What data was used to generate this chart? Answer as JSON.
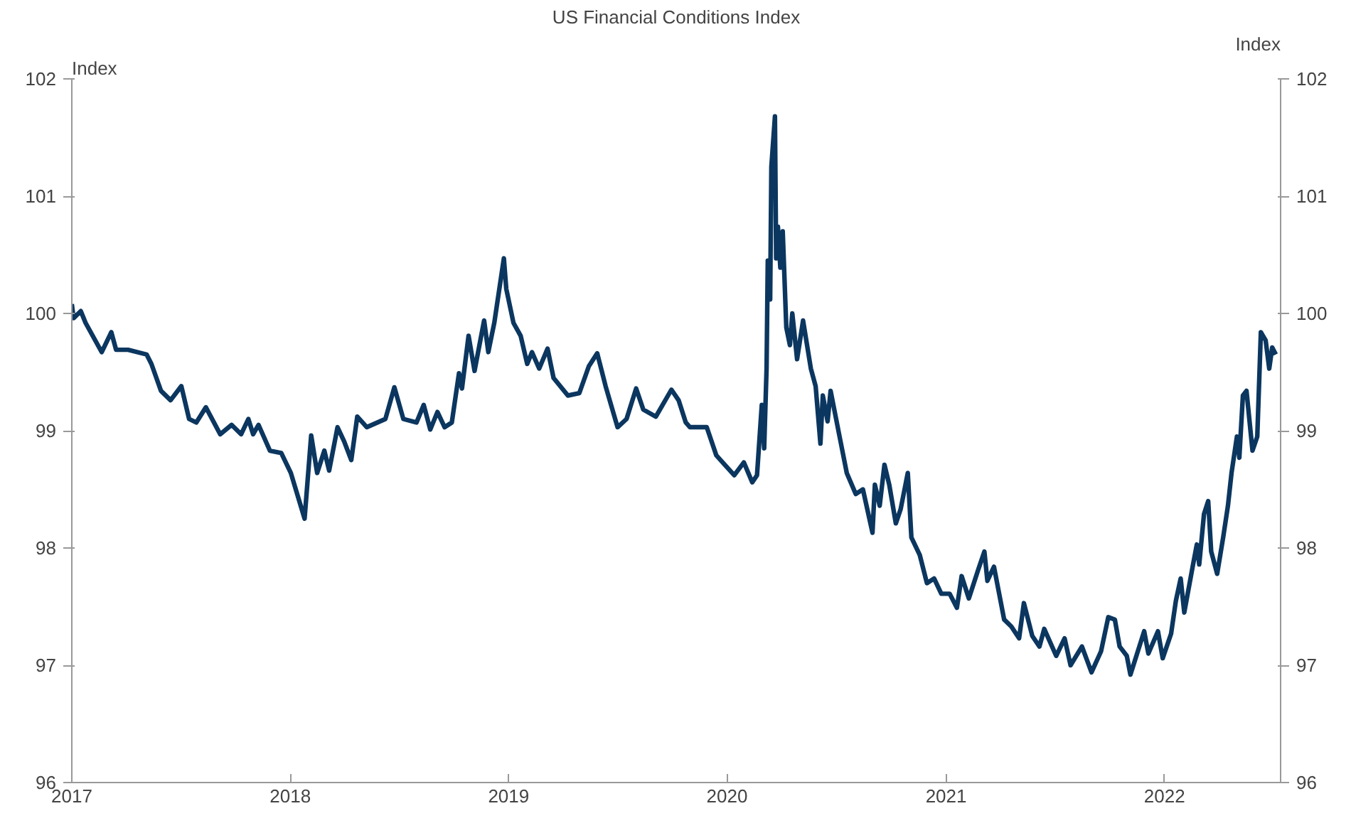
{
  "chart_data": {
    "type": "line",
    "title": "US Financial Conditions Index",
    "ylabel": "Index",
    "y2label": "Index",
    "xlim": [
      "2017-01-01",
      "2022-07-14"
    ],
    "xticks": [
      {
        "value": "2017-01-01",
        "label": "2017"
      },
      {
        "value": "2018-01-01",
        "label": "2018"
      },
      {
        "value": "2019-01-01",
        "label": "2019"
      },
      {
        "value": "2020-01-01",
        "label": "2020"
      },
      {
        "value": "2021-01-01",
        "label": "2021"
      },
      {
        "value": "2022-01-01",
        "label": "2022"
      }
    ],
    "ylim": [
      96,
      102
    ],
    "yticks": [
      96,
      97,
      98,
      99,
      100,
      101,
      102
    ],
    "y2lim": [
      96,
      102
    ],
    "y2ticks": [
      96,
      97,
      98,
      99,
      100,
      101,
      102
    ],
    "series": [
      {
        "color": "#0b365f",
        "x": [
          "2017-01-01",
          "2017-01-04",
          "2017-01-16",
          "2017-01-24",
          "2017-02-20",
          "2017-03-08",
          "2017-03-16",
          "2017-04-05",
          "2017-05-06",
          "2017-05-14",
          "2017-05-30",
          "2017-06-15",
          "2017-07-03",
          "2017-07-16",
          "2017-07-28",
          "2017-08-13",
          "2017-09-06",
          "2017-09-25",
          "2017-10-11",
          "2017-10-23",
          "2017-10-31",
          "2017-11-09",
          "2017-11-28",
          "2017-12-17",
          "2018-01-02",
          "2018-01-25",
          "2018-02-05",
          "2018-02-15",
          "2018-02-27",
          "2018-03-07",
          "2018-03-21",
          "2018-04-01",
          "2018-04-13",
          "2018-04-23",
          "2018-05-09",
          "2018-06-09",
          "2018-06-24",
          "2018-07-09",
          "2018-07-31",
          "2018-08-12",
          "2018-08-23",
          "2018-09-04",
          "2018-09-16",
          "2018-09-28",
          "2018-10-10",
          "2018-10-15",
          "2018-10-26",
          "2018-11-05",
          "2018-11-21",
          "2018-11-28",
          "2018-12-08",
          "2018-12-24",
          "2018-12-28",
          "2019-01-09",
          "2019-01-21",
          "2019-02-01",
          "2019-02-09",
          "2019-02-21",
          "2019-03-07",
          "2019-03-17",
          "2019-04-10",
          "2019-04-29",
          "2019-05-15",
          "2019-05-29",
          "2019-06-12",
          "2019-07-02",
          "2019-07-17",
          "2019-08-02",
          "2019-08-14",
          "2019-09-04",
          "2019-09-30",
          "2019-10-12",
          "2019-10-24",
          "2019-10-31",
          "2019-11-28",
          "2019-12-14",
          "2020-01-13",
          "2020-01-29",
          "2020-02-12",
          "2020-02-20",
          "2020-02-28",
          "2020-03-03",
          "2020-03-07",
          "2020-03-09",
          "2020-03-13",
          "2020-03-15",
          "2020-03-21",
          "2020-03-23",
          "2020-03-26",
          "2020-03-30",
          "2020-04-03",
          "2020-04-09",
          "2020-04-15",
          "2020-04-19",
          "2020-04-27",
          "2020-05-07",
          "2020-05-20",
          "2020-05-28",
          "2020-06-05",
          "2020-06-09",
          "2020-06-17",
          "2020-06-22",
          "2020-07-07",
          "2020-07-19",
          "2020-08-03",
          "2020-08-15",
          "2020-08-31",
          "2020-09-04",
          "2020-09-12",
          "2020-09-20",
          "2020-09-28",
          "2020-10-09",
          "2020-10-17",
          "2020-10-29",
          "2020-11-04",
          "2020-11-18",
          "2020-11-30",
          "2020-12-12",
          "2020-12-24",
          "2021-01-07",
          "2021-01-19",
          "2021-01-27",
          "2021-02-08",
          "2021-02-24",
          "2021-03-06",
          "2021-03-11",
          "2021-03-22",
          "2021-04-08",
          "2021-04-20",
          "2021-05-03",
          "2021-05-11",
          "2021-05-25",
          "2021-06-06",
          "2021-06-14",
          "2021-07-04",
          "2021-07-18",
          "2021-07-28",
          "2021-08-16",
          "2021-09-01",
          "2021-09-17",
          "2021-09-29",
          "2021-10-10",
          "2021-10-18",
          "2021-10-30",
          "2021-11-05",
          "2021-11-15",
          "2021-11-28",
          "2021-12-05",
          "2021-12-21",
          "2021-12-29",
          "2022-01-12",
          "2022-01-20",
          "2022-01-28",
          "2022-02-03",
          "2022-02-17",
          "2022-02-24",
          "2022-02-28",
          "2022-03-08",
          "2022-03-15",
          "2022-03-20",
          "2022-03-30",
          "2022-04-09",
          "2022-04-17",
          "2022-04-23",
          "2022-05-02",
          "2022-05-06",
          "2022-05-12",
          "2022-05-18",
          "2022-05-28",
          "2022-06-05",
          "2022-06-11",
          "2022-06-19",
          "2022-06-25",
          "2022-06-30",
          "2022-07-06"
        ],
        "values": [
          100.08,
          99.96,
          100.02,
          99.92,
          99.67,
          99.84,
          99.69,
          99.69,
          99.65,
          99.57,
          99.34,
          99.26,
          99.38,
          99.1,
          99.07,
          99.2,
          98.97,
          99.05,
          98.97,
          99.1,
          98.97,
          99.05,
          98.83,
          98.81,
          98.64,
          98.25,
          98.96,
          98.64,
          98.83,
          98.66,
          99.03,
          98.91,
          98.75,
          99.12,
          99.03,
          99.1,
          99.37,
          99.1,
          99.07,
          99.22,
          99.01,
          99.16,
          99.03,
          99.07,
          99.49,
          99.36,
          99.81,
          99.51,
          99.94,
          99.67,
          99.92,
          100.47,
          100.21,
          99.92,
          99.81,
          99.57,
          99.67,
          99.53,
          99.7,
          99.45,
          99.3,
          99.32,
          99.55,
          99.66,
          99.38,
          99.03,
          99.1,
          99.36,
          99.18,
          99.12,
          99.35,
          99.26,
          99.07,
          99.03,
          99.03,
          98.79,
          98.62,
          98.73,
          98.56,
          98.62,
          99.22,
          98.85,
          99.53,
          100.45,
          100.12,
          101.25,
          101.68,
          100.47,
          100.74,
          100.39,
          100.7,
          99.88,
          99.73,
          100.0,
          99.61,
          99.94,
          99.53,
          99.38,
          98.89,
          99.3,
          99.08,
          99.34,
          98.95,
          98.64,
          98.46,
          98.5,
          98.13,
          98.54,
          98.36,
          98.71,
          98.54,
          98.21,
          98.33,
          98.64,
          98.09,
          97.94,
          97.7,
          97.74,
          97.61,
          97.61,
          97.49,
          97.76,
          97.57,
          97.82,
          97.97,
          97.72,
          97.84,
          97.39,
          97.33,
          97.23,
          97.53,
          97.25,
          97.16,
          97.31,
          97.08,
          97.23,
          97.0,
          97.16,
          96.94,
          97.12,
          97.41,
          97.39,
          97.16,
          97.08,
          96.92,
          97.08,
          97.29,
          97.1,
          97.29,
          97.06,
          97.27,
          97.55,
          97.74,
          97.45,
          97.84,
          98.03,
          97.86,
          98.29,
          98.4,
          97.97,
          97.78,
          98.09,
          98.36,
          98.64,
          98.95,
          98.77,
          99.3,
          99.34,
          98.83,
          98.95,
          99.84,
          99.77,
          99.53,
          99.71,
          99.65
        ]
      }
    ]
  }
}
